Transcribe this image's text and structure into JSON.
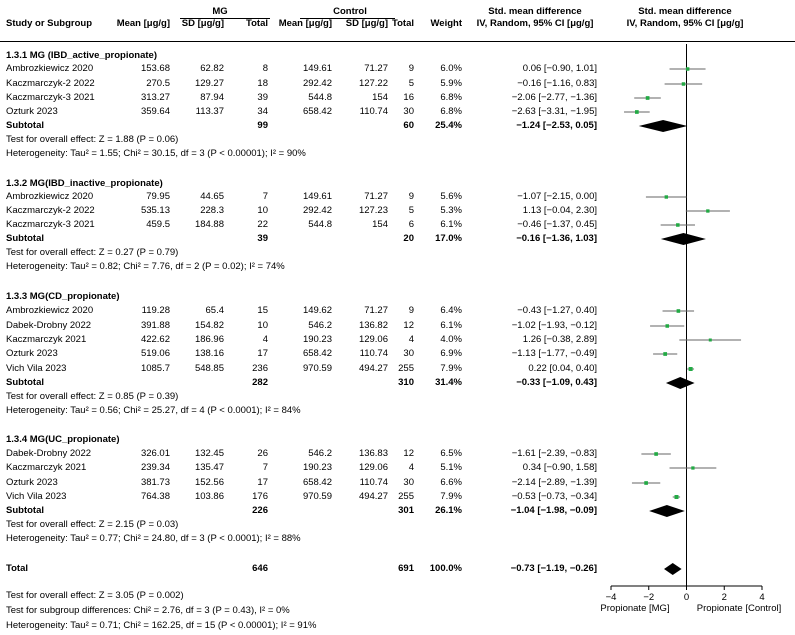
{
  "header": {
    "col_study": "Study or Subgroup",
    "group_mg": "MG",
    "group_control": "Control",
    "col_mean": "Mean [μg/g]",
    "col_sd": "SD [μg/g]",
    "col_total": "Total",
    "col_weight": "Weight",
    "effect_title": "Std. mean difference",
    "effect_sub": "IV, Random, 95% CI [μg/g]",
    "plot_title": "Std. mean difference",
    "plot_sub": "IV, Random, 95% CI [μg/g]"
  },
  "subgroups": [
    {
      "title": "1.3.1 MG (IBD_active_propionate)",
      "studies": [
        {
          "name": "Ambrozkiewicz 2020",
          "mg_mean": "153.68",
          "mg_sd": "62.82",
          "mg_total": "8",
          "c_mean": "149.61",
          "c_sd": "71.27",
          "c_total": "9",
          "weight": "6.0%",
          "ci_text": "0.06 [−0.90, 1.01]"
        },
        {
          "name": "Kaczmarczyk-2 2022",
          "mg_mean": "270.5",
          "mg_sd": "129.27",
          "mg_total": "18",
          "c_mean": "292.42",
          "c_sd": "127.22",
          "c_total": "5",
          "weight": "5.9%",
          "ci_text": "−0.16 [−1.16, 0.83]"
        },
        {
          "name": "Kaczmarczyk-3 2021",
          "mg_mean": "313.27",
          "mg_sd": "87.94",
          "mg_total": "39",
          "c_mean": "544.8",
          "c_sd": "154",
          "c_total": "16",
          "weight": "6.8%",
          "ci_text": "−2.06 [−2.77, −1.36]"
        },
        {
          "name": "Ozturk 2023",
          "mg_mean": "359.64",
          "mg_sd": "113.37",
          "mg_total": "34",
          "c_mean": "658.42",
          "c_sd": "110.74",
          "c_total": "30",
          "weight": "6.8%",
          "ci_text": "−2.63 [−3.31, −1.95]"
        }
      ],
      "subtotal": {
        "label": "Subtotal",
        "mg_total": "99",
        "c_total": "60",
        "weight": "25.4%",
        "ci_text": "−1.24 [−2.53, 0.05]"
      },
      "test_overall": "Test for overall effect: Z = 1.88 (P = 0.06)",
      "heterogeneity": "Heterogeneity: Tau² = 1.55; Chi² = 30.15, df = 3 (P < 0.00001); I² = 90%"
    },
    {
      "title": "1.3.2 MG(IBD_inactive_propionate)",
      "studies": [
        {
          "name": "Ambrozkiewicz 2020",
          "mg_mean": "79.95",
          "mg_sd": "44.65",
          "mg_total": "7",
          "c_mean": "149.61",
          "c_sd": "71.27",
          "c_total": "9",
          "weight": "5.6%",
          "ci_text": "−1.07 [−2.15, 0.00]"
        },
        {
          "name": "Kaczmarczyk-2 2022",
          "mg_mean": "535.13",
          "mg_sd": "228.3",
          "mg_total": "10",
          "c_mean": "292.42",
          "c_sd": "127.23",
          "c_total": "5",
          "weight": "5.3%",
          "ci_text": "1.13 [−0.04, 2.30]"
        },
        {
          "name": "Kaczmarczyk-3 2021",
          "mg_mean": "459.5",
          "mg_sd": "184.88",
          "mg_total": "22",
          "c_mean": "544.8",
          "c_sd": "154",
          "c_total": "6",
          "weight": "6.1%",
          "ci_text": "−0.46 [−1.37, 0.45]"
        }
      ],
      "subtotal": {
        "label": "Subtotal",
        "mg_total": "39",
        "c_total": "20",
        "weight": "17.0%",
        "ci_text": "−0.16 [−1.36, 1.03]"
      },
      "test_overall": "Test for overall effect: Z = 0.27 (P = 0.79)",
      "heterogeneity": "Heterogeneity: Tau² = 0.82; Chi² = 7.76, df = 2 (P = 0.02); I² = 74%"
    },
    {
      "title": "1.3.3 MG(CD_propionate)",
      "studies": [
        {
          "name": "Ambrozkiewicz 2020",
          "mg_mean": "119.28",
          "mg_sd": "65.4",
          "mg_total": "15",
          "c_mean": "149.62",
          "c_sd": "71.27",
          "c_total": "9",
          "weight": "6.4%",
          "ci_text": "−0.43 [−1.27, 0.40]"
        },
        {
          "name": "Dabek-Drobny 2022",
          "mg_mean": "391.88",
          "mg_sd": "154.82",
          "mg_total": "10",
          "c_mean": "546.2",
          "c_sd": "136.82",
          "c_total": "12",
          "weight": "6.1%",
          "ci_text": "−1.02 [−1.93, −0.12]"
        },
        {
          "name": "Kaczmarczyk 2021",
          "mg_mean": "422.62",
          "mg_sd": "186.96",
          "mg_total": "4",
          "c_mean": "190.23",
          "c_sd": "129.06",
          "c_total": "4",
          "weight": "4.0%",
          "ci_text": "1.26 [−0.38, 2.89]"
        },
        {
          "name": "Ozturk 2023",
          "mg_mean": "519.06",
          "mg_sd": "138.16",
          "mg_total": "17",
          "c_mean": "658.42",
          "c_sd": "110.74",
          "c_total": "30",
          "weight": "6.9%",
          "ci_text": "−1.13 [−1.77, −0.49]"
        },
        {
          "name": "Vich Vila 2023",
          "mg_mean": "1085.7",
          "mg_sd": "548.85",
          "mg_total": "236",
          "c_mean": "970.59",
          "c_sd": "494.27",
          "c_total": "255",
          "weight": "7.9%",
          "ci_text": "0.22 [0.04, 0.40]"
        }
      ],
      "subtotal": {
        "label": "Subtotal",
        "mg_total": "282",
        "c_total": "310",
        "weight": "31.4%",
        "ci_text": "−0.33 [−1.09, 0.43]"
      },
      "test_overall": "Test for overall effect: Z = 0.85 (P = 0.39)",
      "heterogeneity": "Heterogeneity: Tau² = 0.56; Chi² = 25.27, df = 4 (P < 0.0001); I² = 84%"
    },
    {
      "title": "1.3.4 MG(UC_propionate)",
      "studies": [
        {
          "name": "Dabek-Drobny 2022",
          "mg_mean": "326.01",
          "mg_sd": "132.45",
          "mg_total": "26",
          "c_mean": "546.2",
          "c_sd": "136.83",
          "c_total": "12",
          "weight": "6.5%",
          "ci_text": "−1.61 [−2.39, −0.83]"
        },
        {
          "name": "Kaczmarczyk 2021",
          "mg_mean": "239.34",
          "mg_sd": "135.47",
          "mg_total": "7",
          "c_mean": "190.23",
          "c_sd": "129.06",
          "c_total": "4",
          "weight": "5.1%",
          "ci_text": "0.34 [−0.90, 1.58]"
        },
        {
          "name": "Ozturk 2023",
          "mg_mean": "381.73",
          "mg_sd": "152.56",
          "mg_total": "17",
          "c_mean": "658.42",
          "c_sd": "110.74",
          "c_total": "30",
          "weight": "6.6%",
          "ci_text": "−2.14 [−2.89, −1.39]"
        },
        {
          "name": "Vich Vila 2023",
          "mg_mean": "764.38",
          "mg_sd": "103.86",
          "mg_total": "176",
          "c_mean": "970.59",
          "c_sd": "494.27",
          "c_total": "255",
          "weight": "7.9%",
          "ci_text": "−0.53 [−0.73, −0.34]"
        }
      ],
      "subtotal": {
        "label": "Subtotal",
        "mg_total": "226",
        "c_total": "301",
        "weight": "26.1%",
        "ci_text": "−1.04 [−1.98, −0.09]"
      },
      "test_overall": "Test for overall effect: Z = 2.15 (P = 0.03)",
      "heterogeneity": "Heterogeneity: Tau² = 0.77; Chi² = 24.80, df = 3 (P < 0.0001); I² = 88%"
    }
  ],
  "total": {
    "label": "Total",
    "mg_total": "646",
    "c_total": "691",
    "weight": "100.0%",
    "ci_text": "−0.73 [−1.19, −0.26]"
  },
  "footer": {
    "test_overall": "Test for overall effect: Z = 3.05 (P = 0.002)",
    "test_subgroup": "Test for subgroup differences: Chi² = 2.76, df = 3 (P = 0.43), I² = 0%",
    "heterogeneity": "Heterogeneity: Tau² = 0.71; Chi² = 162.25, df = 15 (P < 0.00001); I² = 91%"
  },
  "axis": {
    "ticks": [
      "−4",
      "−2",
      "0",
      "2",
      "4"
    ],
    "left_label": "Propionate [MG]",
    "right_label": "Propionate [Control]"
  },
  "colors": {
    "point": "#22aa44",
    "diamond": "#000000",
    "ci_line": "#666666"
  },
  "chart_data": {
    "type": "forest",
    "xlim": [
      -4,
      4
    ],
    "xticks": [
      -4,
      -2,
      0,
      2,
      4
    ],
    "xlabel_left": "Propionate [MG]",
    "xlabel_right": "Propionate [Control]",
    "studies": [
      {
        "group": "1.3.1",
        "name": "Ambrozkiewicz 2020",
        "smd": 0.06,
        "lo": -0.9,
        "hi": 1.01,
        "weight": 6.0
      },
      {
        "group": "1.3.1",
        "name": "Kaczmarczyk-2 2022",
        "smd": -0.16,
        "lo": -1.16,
        "hi": 0.83,
        "weight": 5.9
      },
      {
        "group": "1.3.1",
        "name": "Kaczmarczyk-3 2021",
        "smd": -2.06,
        "lo": -2.77,
        "hi": -1.36,
        "weight": 6.8
      },
      {
        "group": "1.3.1",
        "name": "Ozturk 2023",
        "smd": -2.63,
        "lo": -3.31,
        "hi": -1.95,
        "weight": 6.8
      },
      {
        "group": "1.3.2",
        "name": "Ambrozkiewicz 2020",
        "smd": -1.07,
        "lo": -2.15,
        "hi": 0.0,
        "weight": 5.6
      },
      {
        "group": "1.3.2",
        "name": "Kaczmarczyk-2 2022",
        "smd": 1.13,
        "lo": -0.04,
        "hi": 2.3,
        "weight": 5.3
      },
      {
        "group": "1.3.2",
        "name": "Kaczmarczyk-3 2021",
        "smd": -0.46,
        "lo": -1.37,
        "hi": 0.45,
        "weight": 6.1
      },
      {
        "group": "1.3.3",
        "name": "Ambrozkiewicz 2020",
        "smd": -0.43,
        "lo": -1.27,
        "hi": 0.4,
        "weight": 6.4
      },
      {
        "group": "1.3.3",
        "name": "Dabek-Drobny 2022",
        "smd": -1.02,
        "lo": -1.93,
        "hi": -0.12,
        "weight": 6.1
      },
      {
        "group": "1.3.3",
        "name": "Kaczmarczyk 2021",
        "smd": 1.26,
        "lo": -0.38,
        "hi": 2.89,
        "weight": 4.0
      },
      {
        "group": "1.3.3",
        "name": "Ozturk 2023",
        "smd": -1.13,
        "lo": -1.77,
        "hi": -0.49,
        "weight": 6.9
      },
      {
        "group": "1.3.3",
        "name": "Vich Vila 2023",
        "smd": 0.22,
        "lo": 0.04,
        "hi": 0.4,
        "weight": 7.9
      },
      {
        "group": "1.3.4",
        "name": "Dabek-Drobny 2022",
        "smd": -1.61,
        "lo": -2.39,
        "hi": -0.83,
        "weight": 6.5
      },
      {
        "group": "1.3.4",
        "name": "Kaczmarczyk 2021",
        "smd": 0.34,
        "lo": -0.9,
        "hi": 1.58,
        "weight": 5.1
      },
      {
        "group": "1.3.4",
        "name": "Ozturk 2023",
        "smd": -2.14,
        "lo": -2.89,
        "hi": -1.39,
        "weight": 6.6
      },
      {
        "group": "1.3.4",
        "name": "Vich Vila 2023",
        "smd": -0.53,
        "lo": -0.73,
        "hi": -0.34,
        "weight": 7.9
      }
    ],
    "subtotals": [
      {
        "group": "1.3.1",
        "smd": -1.24,
        "lo": -2.53,
        "hi": 0.05
      },
      {
        "group": "1.3.2",
        "smd": -0.16,
        "lo": -1.36,
        "hi": 1.03
      },
      {
        "group": "1.3.3",
        "smd": -0.33,
        "lo": -1.09,
        "hi": 0.43
      },
      {
        "group": "1.3.4",
        "smd": -1.04,
        "lo": -1.98,
        "hi": -0.09
      }
    ],
    "overall": {
      "smd": -0.73,
      "lo": -1.19,
      "hi": -0.26
    }
  }
}
